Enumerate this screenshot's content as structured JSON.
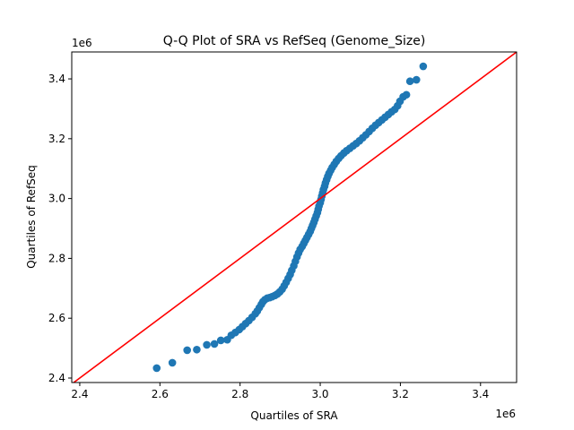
{
  "chart_data": {
    "type": "scatter",
    "title": "Q-Q Plot of SRA vs RefSeq (Genome_Size)",
    "xlabel": "Quartiles of SRA",
    "ylabel": "Quartiles of RefSeq",
    "x_offset_label": "1e6",
    "y_offset_label": "1e6",
    "xlim": [
      2.38,
      3.49
    ],
    "ylim": [
      2.385,
      3.49
    ],
    "x_ticks": [
      2.4,
      2.6,
      2.8,
      3.0,
      3.2,
      3.4
    ],
    "x_tick_labels": [
      "2.4",
      "2.6",
      "2.8",
      "3.0",
      "3.2",
      "3.4"
    ],
    "y_ticks": [
      2.4,
      2.6,
      2.8,
      3.0,
      3.2,
      3.4
    ],
    "y_tick_labels": [
      "2.4",
      "2.6",
      "2.8",
      "3.0",
      "3.2",
      "3.4"
    ],
    "grid": false,
    "marker_color": "#1f77b4",
    "reference_line": {
      "x": [
        2.38,
        3.49
      ],
      "y": [
        2.38,
        3.49
      ],
      "color": "#ff0000"
    },
    "series": [
      {
        "points": [
          [
            2.592,
            2.433
          ],
          [
            2.631,
            2.451
          ],
          [
            2.668,
            2.493
          ],
          [
            2.692,
            2.495
          ],
          [
            2.717,
            2.511
          ],
          [
            2.736,
            2.514
          ],
          [
            2.752,
            2.526
          ],
          [
            2.768,
            2.528
          ],
          [
            2.778,
            2.543
          ],
          [
            2.788,
            2.552
          ],
          [
            2.798,
            2.562
          ],
          [
            2.806,
            2.572
          ],
          [
            2.814,
            2.582
          ],
          [
            2.822,
            2.592
          ],
          [
            2.83,
            2.603
          ],
          [
            2.838,
            2.615
          ],
          [
            2.843,
            2.624
          ],
          [
            2.848,
            2.635
          ],
          [
            2.853,
            2.646
          ],
          [
            2.857,
            2.655
          ],
          [
            2.862,
            2.662
          ],
          [
            2.868,
            2.667
          ],
          [
            2.874,
            2.669
          ],
          [
            2.88,
            2.672
          ],
          [
            2.887,
            2.676
          ],
          [
            2.893,
            2.681
          ],
          [
            2.899,
            2.688
          ],
          [
            2.905,
            2.697
          ],
          [
            2.91,
            2.708
          ],
          [
            2.915,
            2.72
          ],
          [
            2.92,
            2.733
          ],
          [
            2.925,
            2.746
          ],
          [
            2.929,
            2.76
          ],
          [
            2.934,
            2.775
          ],
          [
            2.938,
            2.79
          ],
          [
            2.942,
            2.805
          ],
          [
            2.946,
            2.818
          ],
          [
            2.95,
            2.83
          ],
          [
            2.955,
            2.84
          ],
          [
            2.959,
            2.85
          ],
          [
            2.963,
            2.86
          ],
          [
            2.967,
            2.87
          ],
          [
            2.971,
            2.88
          ],
          [
            2.975,
            2.89
          ],
          [
            2.978,
            2.9
          ],
          [
            2.981,
            2.91
          ],
          [
            2.984,
            2.92
          ],
          [
            2.987,
            2.931
          ],
          [
            2.99,
            2.942
          ],
          [
            2.993,
            2.953
          ],
          [
            2.995,
            2.964
          ],
          [
            2.997,
            2.975
          ],
          [
            3.0,
            2.986
          ],
          [
            3.002,
            2.997
          ],
          [
            3.004,
            3.008
          ],
          [
            3.006,
            3.019
          ],
          [
            3.008,
            3.03
          ],
          [
            3.011,
            3.041
          ],
          [
            3.013,
            3.052
          ],
          [
            3.016,
            3.063
          ],
          [
            3.019,
            3.074
          ],
          [
            3.022,
            3.084
          ],
          [
            3.026,
            3.094
          ],
          [
            3.03,
            3.104
          ],
          [
            3.035,
            3.114
          ],
          [
            3.04,
            3.124
          ],
          [
            3.046,
            3.134
          ],
          [
            3.052,
            3.143
          ],
          [
            3.059,
            3.152
          ],
          [
            3.066,
            3.16
          ],
          [
            3.074,
            3.168
          ],
          [
            3.082,
            3.176
          ],
          [
            3.09,
            3.184
          ],
          [
            3.098,
            3.193
          ],
          [
            3.106,
            3.203
          ],
          [
            3.114,
            3.213
          ],
          [
            3.122,
            3.224
          ],
          [
            3.13,
            3.235
          ],
          [
            3.138,
            3.245
          ],
          [
            3.146,
            3.254
          ],
          [
            3.154,
            3.263
          ],
          [
            3.162,
            3.272
          ],
          [
            3.17,
            3.281
          ],
          [
            3.178,
            3.29
          ],
          [
            3.186,
            3.298
          ],
          [
            3.193,
            3.31
          ],
          [
            3.199,
            3.325
          ],
          [
            3.207,
            3.34
          ],
          [
            3.215,
            3.347
          ],
          [
            3.224,
            3.392
          ],
          [
            3.24,
            3.397
          ],
          [
            3.257,
            3.442
          ]
        ]
      }
    ]
  }
}
